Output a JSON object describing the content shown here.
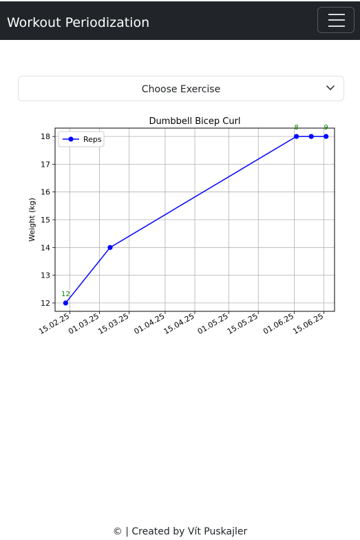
{
  "navbar": {
    "brand": "Workout Periodization",
    "toggle_icon": "hamburger-menu-icon",
    "background": "#212529"
  },
  "exercise_select": {
    "selected": "Choose Exercise",
    "icon": "chevron-down-icon"
  },
  "chart_data": {
    "type": "line",
    "title": "Dumbbell Bicep Curl",
    "xlabel": "",
    "ylabel": "Weight (kg)",
    "x_axis_type": "date",
    "x_tick_format": "DD.MM.YY",
    "xlim": [
      "2025-02-08",
      "2025-06-20"
    ],
    "ylim": [
      11.7,
      18.3
    ],
    "x_ticks": [
      "15.02.25",
      "01.03.25",
      "15.03.25",
      "01.04.25",
      "15.04.25",
      "01.05.25",
      "15.05.25",
      "01.06.25",
      "15.06.25"
    ],
    "y_ticks": [
      12,
      13,
      14,
      15,
      16,
      17,
      18
    ],
    "grid": true,
    "legend": {
      "position": "top-left",
      "entries": [
        "Reps"
      ]
    },
    "series": [
      {
        "name": "Reps",
        "color": "#0000ff",
        "marker": "circle",
        "points": [
          {
            "x": "2025-02-13",
            "y": 12,
            "label": "12"
          },
          {
            "x": "2025-03-06",
            "y": 14,
            "label": ""
          },
          {
            "x": "2025-06-02",
            "y": 18,
            "label": "8"
          },
          {
            "x": "2025-06-09",
            "y": 18,
            "label": ""
          },
          {
            "x": "2025-06-16",
            "y": 18,
            "label": "9"
          }
        ]
      }
    ],
    "annotation_color": "#008000"
  },
  "footer": {
    "text": "© | Created by Vít Puskajler"
  }
}
